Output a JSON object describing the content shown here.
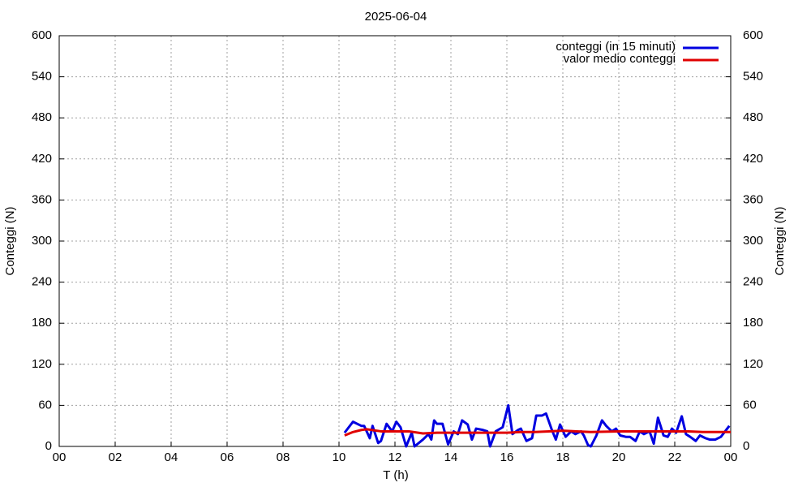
{
  "chart_data": {
    "type": "line",
    "title": "2025-06-04",
    "x_label": "T (h)",
    "y_label": "Conteggi (N)",
    "y2_label": "Conteggi (N)",
    "xlim": [
      0,
      24
    ],
    "xticks": [
      {
        "value": 0,
        "label": "00"
      },
      {
        "value": 2,
        "label": "02"
      },
      {
        "value": 4,
        "label": "04"
      },
      {
        "value": 6,
        "label": "06"
      },
      {
        "value": 8,
        "label": "08"
      },
      10,
      12,
      14,
      16,
      18,
      20,
      22,
      {
        "value": 24,
        "label": "00"
      }
    ],
    "ylim": [
      0,
      600
    ],
    "yticks": [
      0,
      60,
      120,
      180,
      240,
      300,
      360,
      420,
      480,
      540,
      600
    ],
    "y2lim": [
      0,
      600
    ],
    "y2ticks": [
      0,
      60,
      120,
      180,
      240,
      300,
      360,
      420,
      480,
      540,
      600
    ],
    "grid": true,
    "legend": "top right",
    "series": [
      {
        "name": "conteggi (in 15 minuti)",
        "color": "#0000e0",
        "x": [
          10.2,
          10.5,
          10.8,
          10.9,
          11.1,
          11.2,
          11.4,
          11.5,
          11.7,
          11.9,
          12.05,
          12.2,
          12.4,
          12.6,
          12.7,
          13.0,
          13.2,
          13.3,
          13.4,
          13.5,
          13.7,
          13.9,
          14.1,
          14.25,
          14.4,
          14.6,
          14.75,
          14.9,
          15.15,
          15.3,
          15.4,
          15.6,
          15.85,
          16.05,
          16.2,
          16.4,
          16.5,
          16.7,
          16.9,
          17.05,
          17.25,
          17.4,
          17.6,
          17.75,
          17.9,
          18.1,
          18.3,
          18.45,
          18.65,
          18.75,
          18.9,
          19.0,
          19.2,
          19.4,
          19.55,
          19.75,
          19.9,
          20.05,
          20.25,
          20.4,
          20.6,
          20.75,
          20.9,
          21.1,
          21.25,
          21.4,
          21.6,
          21.75,
          21.9,
          22.05,
          22.25,
          22.4,
          22.55,
          22.75,
          22.9,
          23.1,
          23.25,
          23.45,
          23.65,
          23.8,
          23.95
        ],
        "values": [
          20,
          36,
          30,
          30,
          12,
          30,
          5,
          8,
          33,
          22,
          36,
          28,
          0,
          20,
          0,
          10,
          18,
          10,
          38,
          33,
          33,
          3,
          22,
          18,
          38,
          32,
          10,
          26,
          24,
          22,
          0,
          22,
          28,
          60,
          18,
          24,
          26,
          8,
          12,
          45,
          45,
          48,
          25,
          10,
          32,
          14,
          22,
          18,
          22,
          16,
          2,
          0,
          16,
          38,
          30,
          22,
          26,
          16,
          14,
          14,
          8,
          22,
          18,
          22,
          4,
          42,
          16,
          14,
          26,
          20,
          44,
          18,
          14,
          8,
          16,
          12,
          10,
          10,
          14,
          22,
          30
        ]
      },
      {
        "name": "valor medio conteggi",
        "color": "#e00000",
        "x": [
          10.2,
          10.5,
          10.8,
          11.0,
          11.5,
          12.0,
          12.5,
          13.0,
          13.5,
          14.0,
          15.0,
          16.0,
          16.5,
          17.0,
          17.5,
          18.0,
          18.5,
          19.0,
          20.0,
          21.0,
          22.0,
          22.5,
          23.0,
          24.0
        ],
        "values": [
          16,
          21,
          24,
          25,
          22,
          22,
          22,
          19,
          20,
          20,
          20,
          20,
          21,
          21,
          22,
          23,
          22,
          21,
          22,
          22,
          22,
          22,
          21,
          21
        ]
      }
    ]
  }
}
